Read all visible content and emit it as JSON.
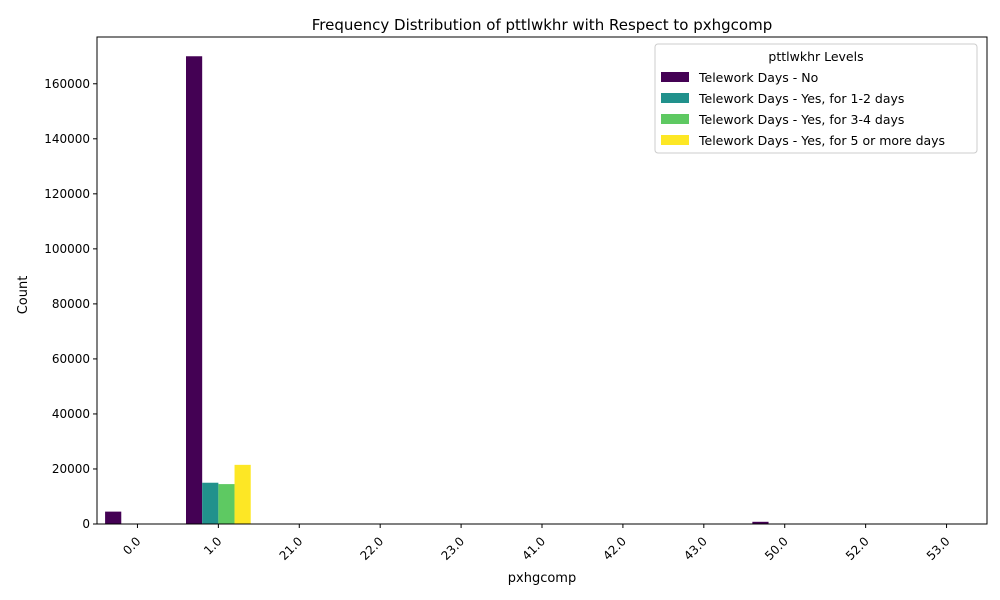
{
  "chart_data": {
    "type": "bar",
    "title": "Frequency Distribution of pttlwkhr with Respect to pxhgcomp",
    "xlabel": "pxhgcomp",
    "ylabel": "Count",
    "categories": [
      "0.0",
      "1.0",
      "21.0",
      "22.0",
      "23.0",
      "41.0",
      "42.0",
      "43.0",
      "50.0",
      "52.0",
      "53.0"
    ],
    "ylim": [
      0,
      177000
    ],
    "yticks": [
      0,
      20000,
      40000,
      60000,
      80000,
      100000,
      120000,
      140000,
      160000
    ],
    "grid": false,
    "legend_title": "pttlwkhr Levels",
    "legend_position": "top-right",
    "series": [
      {
        "name": "Telework Days - No",
        "color": "#440154",
        "values": [
          4500,
          170000,
          0,
          0,
          0,
          0,
          0,
          0,
          800,
          0,
          0
        ]
      },
      {
        "name": "Telework Days - Yes, for 1-2 days",
        "color": "#21918c",
        "values": [
          0,
          15000,
          0,
          0,
          0,
          0,
          0,
          0,
          0,
          0,
          0
        ]
      },
      {
        "name": "Telework Days - Yes, for 3-4 days",
        "color": "#5ec962",
        "values": [
          0,
          14500,
          0,
          0,
          0,
          0,
          0,
          0,
          0,
          0,
          0
        ]
      },
      {
        "name": "Telework Days - Yes, for 5 or more days",
        "color": "#fde725",
        "values": [
          0,
          21500,
          0,
          0,
          0,
          0,
          0,
          0,
          0,
          0,
          0
        ]
      }
    ]
  }
}
